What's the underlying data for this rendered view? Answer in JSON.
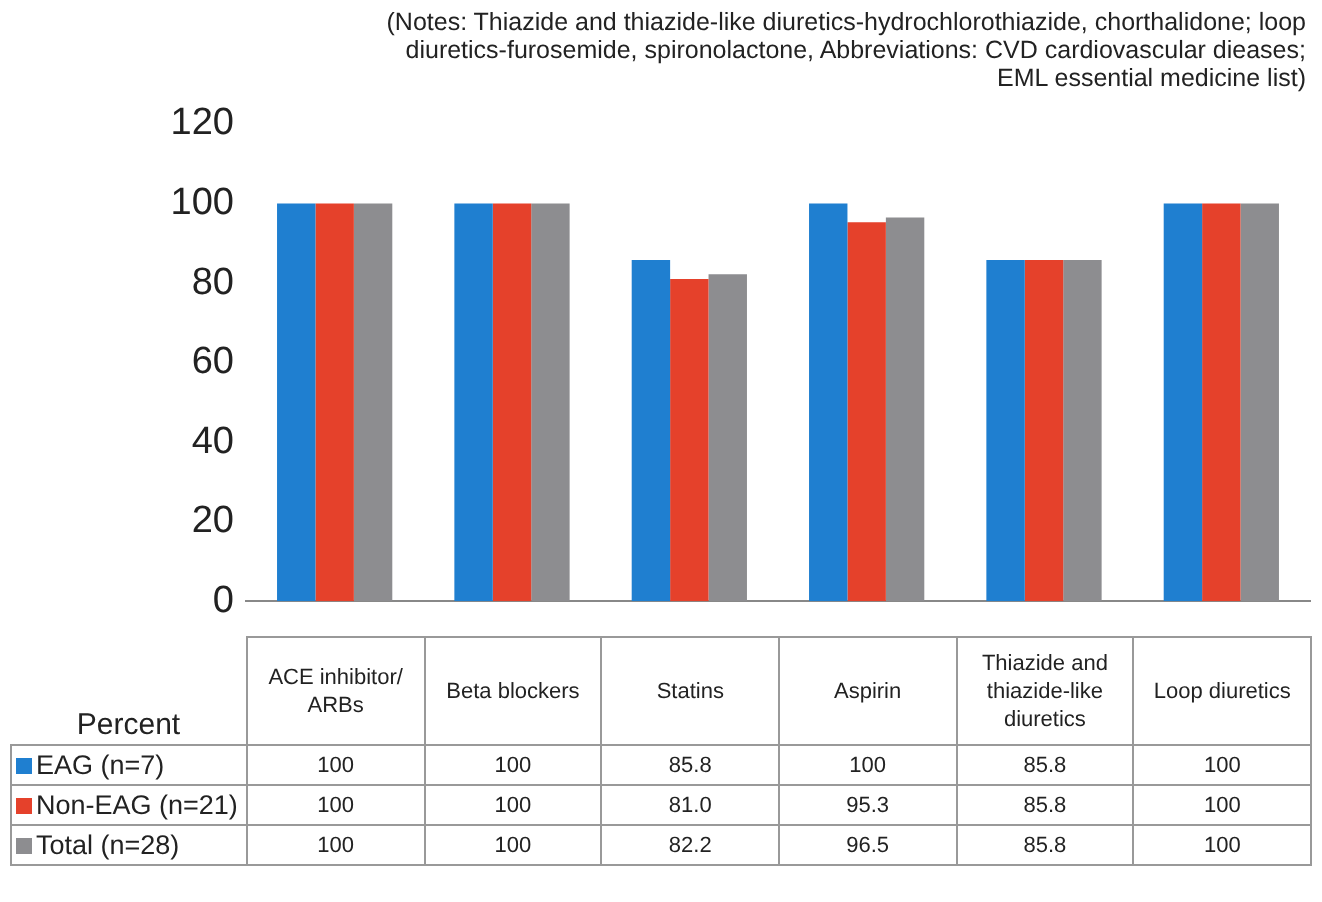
{
  "chart_data": {
    "type": "bar",
    "ylabel": "Percent",
    "annotations": [
      "(Notes: Thiazide and thiazide-like diuretics-hydrochlorothiazide, chorthalidone; loop diuretics-furosemide, spironolactone, Abbreviations: CVD cardiovascular dieases; EML essential medicine list)"
    ],
    "categories": [
      "ACE inhibitor/ ARBs",
      "Beta blockers",
      "Statins",
      "Aspirin",
      "Thiazide and thiazide-like diuretics",
      "Loop diuretics"
    ],
    "series": [
      {
        "name": "EAG (n=7)",
        "color": "#1f7fd0",
        "values": [
          100,
          100,
          85.8,
          100,
          85.8,
          100
        ],
        "value_labels": [
          "100",
          "100",
          "85.8",
          "100",
          "85.8",
          "100"
        ]
      },
      {
        "name": "Non-EAG (n=21)",
        "color": "#e5412b",
        "values": [
          100,
          100,
          81.0,
          95.3,
          85.8,
          100
        ],
        "value_labels": [
          "100",
          "100",
          "81.0",
          "95.3",
          "85.8",
          "100"
        ]
      },
      {
        "name": "Total (n=28)",
        "color": "#8d8d90",
        "values": [
          100,
          100,
          82.2,
          96.5,
          85.8,
          100
        ],
        "value_labels": [
          "100",
          "100",
          "82.2",
          "96.5",
          "85.8",
          "100"
        ]
      }
    ],
    "ylim": [
      0,
      120
    ],
    "yticks": [
      0,
      20,
      40,
      60,
      80,
      100,
      120
    ],
    "grid": false,
    "legend": "bottom",
    "data_labels": true
  }
}
